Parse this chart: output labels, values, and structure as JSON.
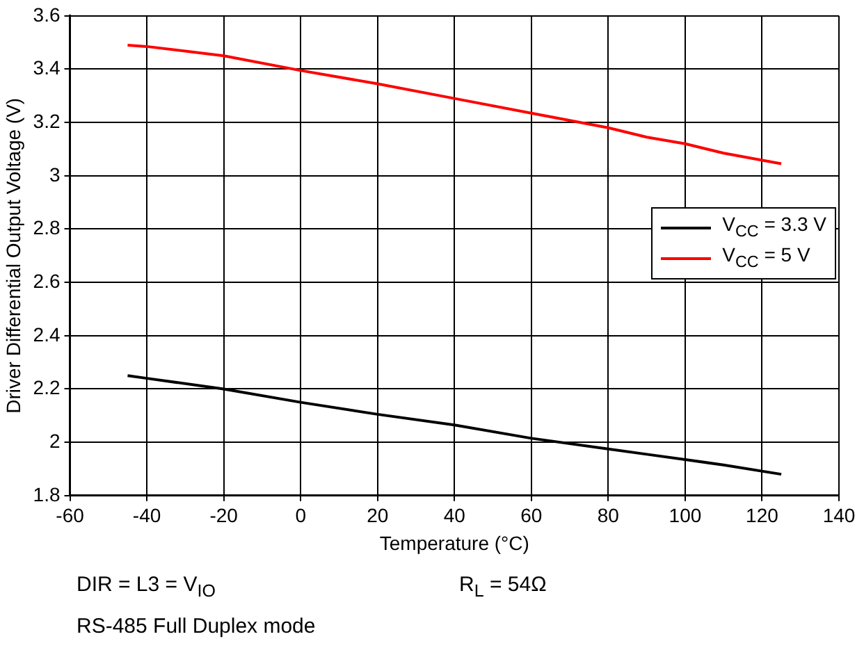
{
  "chart_data": {
    "type": "line",
    "xlabel": "Temperature (°C)",
    "ylabel": "Driver Differential Output Voltage (V)",
    "x": [
      -45,
      -40,
      -20,
      0,
      20,
      40,
      60,
      80,
      90,
      100,
      110,
      125
    ],
    "series": [
      {
        "name": "V$_{CC}$ = 3.3 V",
        "color": "#000000",
        "values": [
          2.25,
          2.24,
          2.2,
          2.15,
          2.105,
          2.065,
          2.015,
          1.975,
          1.955,
          1.935,
          1.915,
          1.88
        ]
      },
      {
        "name": "V$_{CC}$ = 5 V",
        "color": "#ff0000",
        "values": [
          3.49,
          3.485,
          3.45,
          3.395,
          3.345,
          3.29,
          3.235,
          3.18,
          3.145,
          3.12,
          3.085,
          3.045
        ]
      }
    ],
    "xlim": [
      -60,
      140
    ],
    "xticks": [
      -60,
      -40,
      -20,
      0,
      20,
      40,
      60,
      80,
      100,
      120,
      140
    ],
    "ylim": [
      1.8,
      3.6
    ],
    "yticks": [
      1.8,
      2,
      2.2,
      2.4,
      2.6,
      2.8,
      3,
      3.2,
      3.4,
      3.6
    ],
    "grid": true,
    "legend": "right",
    "marker": "none",
    "line_style": "solid",
    "annotations": [
      "DIR = L3 = V$_{IO}$",
      "R$_{L}$ = 54Ω",
      "RS-485 Full Duplex mode"
    ]
  }
}
